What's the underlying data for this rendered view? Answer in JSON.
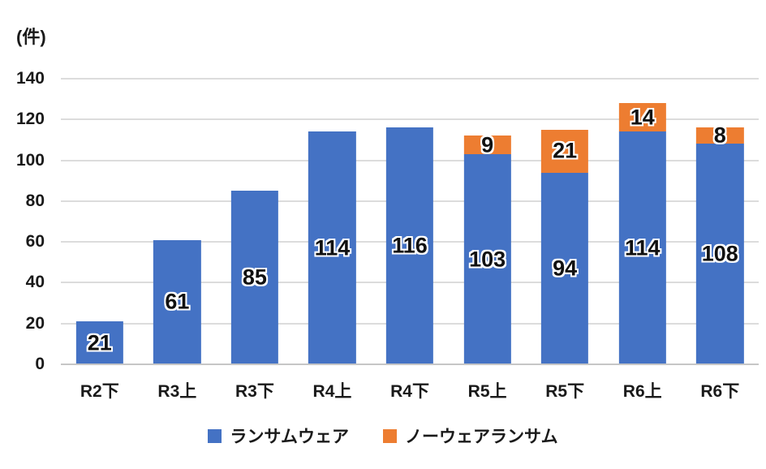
{
  "unit_label": "(件)",
  "chart_data": {
    "type": "bar",
    "stacked": true,
    "title": "",
    "xlabel": "",
    "ylabel": "(件)",
    "categories": [
      "R2下",
      "R3上",
      "R3下",
      "R4上",
      "R4下",
      "R5上",
      "R5下",
      "R6上",
      "R6下"
    ],
    "series": [
      {
        "name": "ランサムウェア",
        "color": "#4472C4",
        "values": [
          21,
          61,
          85,
          114,
          116,
          103,
          94,
          114,
          108
        ]
      },
      {
        "name": "ノーウェアランサム",
        "color": "#ED7D31",
        "values": [
          0,
          0,
          0,
          0,
          0,
          9,
          21,
          14,
          8
        ]
      }
    ],
    "ylim": [
      0,
      140
    ],
    "ytick_step": 20,
    "ytick_labels": [
      "0",
      "20",
      "40",
      "60",
      "80",
      "100",
      "120",
      "140"
    ],
    "grid": true,
    "legend_position": "bottom",
    "data_labels": "center",
    "colors": {
      "gridline": "#dcdcdc",
      "axis_line": "#c6c6c6",
      "label_text": "#111111",
      "label_outline": "#ffffff",
      "background": "#ffffff"
    }
  }
}
